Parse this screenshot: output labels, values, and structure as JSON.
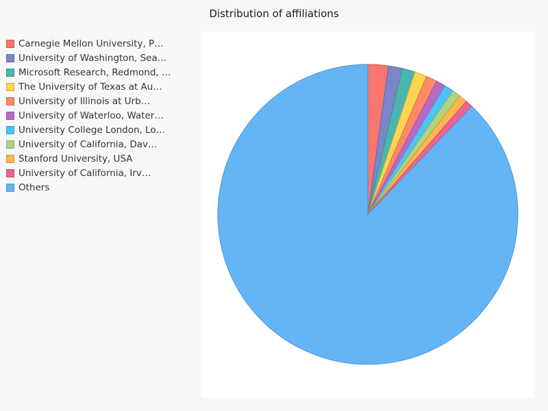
{
  "chart_data": {
    "type": "pie",
    "title": "Distribution of affiliations",
    "legend_position": "left",
    "categories": [
      "Carnegie Mellon University, P…",
      "University of Washington, Sea…",
      "Microsoft Research, Redmond, …",
      "The University of Texas at Au…",
      "University of Illinois at Urb…",
      "University of Waterloo, Water…",
      "University College London, Lo…",
      "University of California, Dav…",
      "Stanford University, USA",
      "University of California, Irv…",
      "Others"
    ],
    "values": [
      2.2,
      1.5,
      1.4,
      1.3,
      1.2,
      1.0,
      1.0,
      0.9,
      0.9,
      0.8,
      87.8
    ],
    "colors": [
      "#f8766d",
      "#7986cb",
      "#4db6ac",
      "#ffd54f",
      "#ff8a65",
      "#ba68c8",
      "#4fc3f7",
      "#aed581",
      "#ffb74d",
      "#f06292",
      "#64b5f6"
    ]
  }
}
